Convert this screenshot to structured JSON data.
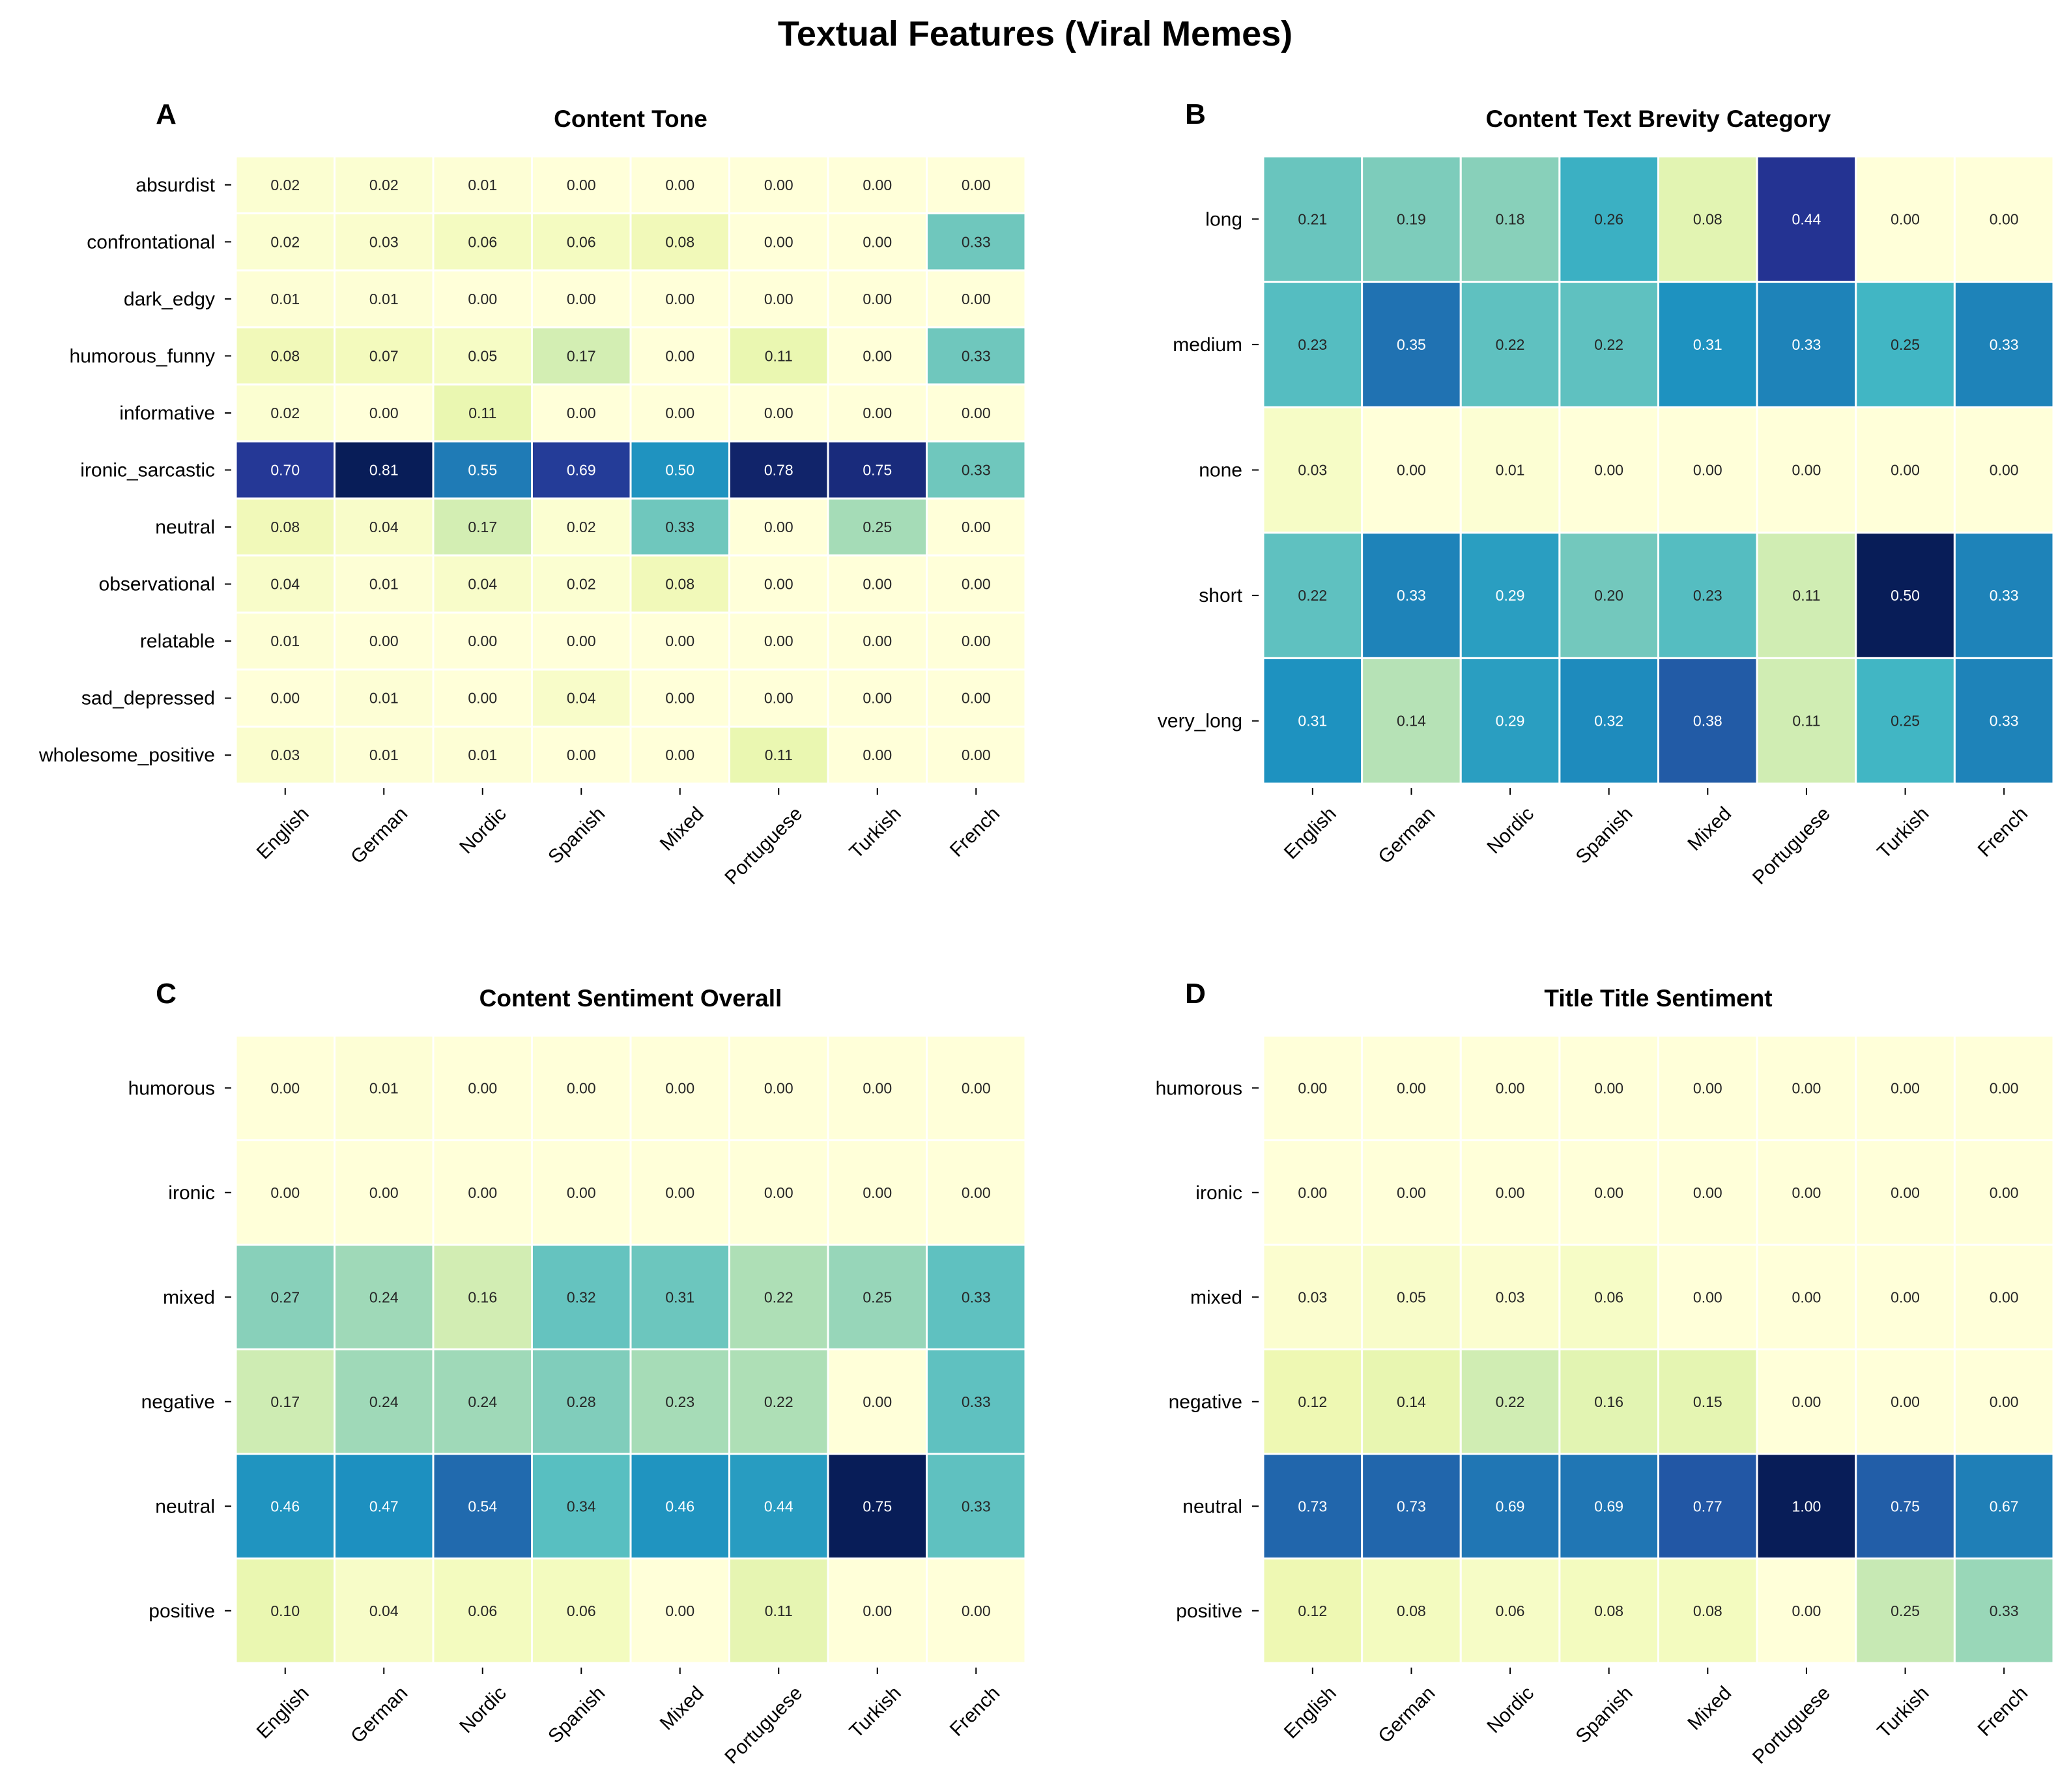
{
  "suptitle": "Textual Features (Viral Memes)",
  "colormap": "YlGnBu",
  "colormap_stops": [
    "#ffffd9",
    "#edf8b1",
    "#c7e9b4",
    "#7fcdbb",
    "#41b6c4",
    "#1d91c0",
    "#225ea8",
    "#253494",
    "#081d58"
  ],
  "chart_data": [
    {
      "type": "heatmap",
      "panel_label": "A",
      "title": "Content Tone",
      "columns": [
        "English",
        "German",
        "Nordic",
        "Spanish",
        "Mixed",
        "Portuguese",
        "Turkish",
        "French"
      ],
      "rows": [
        "absurdist",
        "confrontational",
        "dark_edgy",
        "humorous_funny",
        "informative",
        "ironic_sarcastic",
        "neutral",
        "observational",
        "relatable",
        "sad_depressed",
        "wholesome_positive"
      ],
      "values": [
        [
          0.02,
          0.02,
          0.01,
          0.0,
          0.0,
          0.0,
          0.0,
          0.0
        ],
        [
          0.02,
          0.03,
          0.06,
          0.06,
          0.08,
          0.0,
          0.0,
          0.33
        ],
        [
          0.01,
          0.01,
          0.0,
          0.0,
          0.0,
          0.0,
          0.0,
          0.0
        ],
        [
          0.08,
          0.07,
          0.05,
          0.17,
          0.0,
          0.11,
          0.0,
          0.33
        ],
        [
          0.02,
          0.0,
          0.11,
          0.0,
          0.0,
          0.0,
          0.0,
          0.0
        ],
        [
          0.7,
          0.81,
          0.55,
          0.69,
          0.5,
          0.78,
          0.75,
          0.33
        ],
        [
          0.08,
          0.04,
          0.17,
          0.02,
          0.33,
          0.0,
          0.25,
          0.0
        ],
        [
          0.04,
          0.01,
          0.04,
          0.02,
          0.08,
          0.0,
          0.0,
          0.0
        ],
        [
          0.01,
          0.0,
          0.0,
          0.0,
          0.0,
          0.0,
          0.0,
          0.0
        ],
        [
          0.0,
          0.01,
          0.0,
          0.04,
          0.0,
          0.0,
          0.0,
          0.0
        ],
        [
          0.03,
          0.01,
          0.01,
          0.0,
          0.0,
          0.11,
          0.0,
          0.0
        ]
      ]
    },
    {
      "type": "heatmap",
      "panel_label": "B",
      "title": "Content Text Brevity Category",
      "columns": [
        "English",
        "German",
        "Nordic",
        "Spanish",
        "Mixed",
        "Portuguese",
        "Turkish",
        "French"
      ],
      "rows": [
        "long",
        "medium",
        "none",
        "short",
        "very_long"
      ],
      "values": [
        [
          0.21,
          0.19,
          0.18,
          0.26,
          0.08,
          0.44,
          0.0,
          0.0
        ],
        [
          0.23,
          0.35,
          0.22,
          0.22,
          0.31,
          0.33,
          0.25,
          0.33
        ],
        [
          0.03,
          0.0,
          0.01,
          0.0,
          0.0,
          0.0,
          0.0,
          0.0
        ],
        [
          0.22,
          0.33,
          0.29,
          0.2,
          0.23,
          0.11,
          0.5,
          0.33
        ],
        [
          0.31,
          0.14,
          0.29,
          0.32,
          0.38,
          0.11,
          0.25,
          0.33
        ]
      ]
    },
    {
      "type": "heatmap",
      "panel_label": "C",
      "title": "Content Sentiment Overall",
      "columns": [
        "English",
        "German",
        "Nordic",
        "Spanish",
        "Mixed",
        "Portuguese",
        "Turkish",
        "French"
      ],
      "rows": [
        "humorous",
        "ironic",
        "mixed",
        "negative",
        "neutral",
        "positive"
      ],
      "values": [
        [
          0.0,
          0.01,
          0.0,
          0.0,
          0.0,
          0.0,
          0.0,
          0.0
        ],
        [
          0.0,
          0.0,
          0.0,
          0.0,
          0.0,
          0.0,
          0.0,
          0.0
        ],
        [
          0.27,
          0.24,
          0.16,
          0.32,
          0.31,
          0.22,
          0.25,
          0.33
        ],
        [
          0.17,
          0.24,
          0.24,
          0.28,
          0.23,
          0.22,
          0.0,
          0.33
        ],
        [
          0.46,
          0.47,
          0.54,
          0.34,
          0.46,
          0.44,
          0.75,
          0.33
        ],
        [
          0.1,
          0.04,
          0.06,
          0.06,
          0.0,
          0.11,
          0.0,
          0.0
        ]
      ]
    },
    {
      "type": "heatmap",
      "panel_label": "D",
      "title": "Title Title Sentiment",
      "columns": [
        "English",
        "German",
        "Nordic",
        "Spanish",
        "Mixed",
        "Portuguese",
        "Turkish",
        "French"
      ],
      "rows": [
        "humorous",
        "ironic",
        "mixed",
        "negative",
        "neutral",
        "positive"
      ],
      "values": [
        [
          0.0,
          0.0,
          0.0,
          0.0,
          0.0,
          0.0,
          0.0,
          0.0
        ],
        [
          0.0,
          0.0,
          0.0,
          0.0,
          0.0,
          0.0,
          0.0,
          0.0
        ],
        [
          0.03,
          0.05,
          0.03,
          0.06,
          0.0,
          0.0,
          0.0,
          0.0
        ],
        [
          0.12,
          0.14,
          0.22,
          0.16,
          0.15,
          0.0,
          0.0,
          0.0
        ],
        [
          0.73,
          0.73,
          0.69,
          0.69,
          0.77,
          1.0,
          0.75,
          0.67
        ],
        [
          0.12,
          0.08,
          0.06,
          0.08,
          0.08,
          0.0,
          0.25,
          0.33
        ]
      ]
    }
  ]
}
